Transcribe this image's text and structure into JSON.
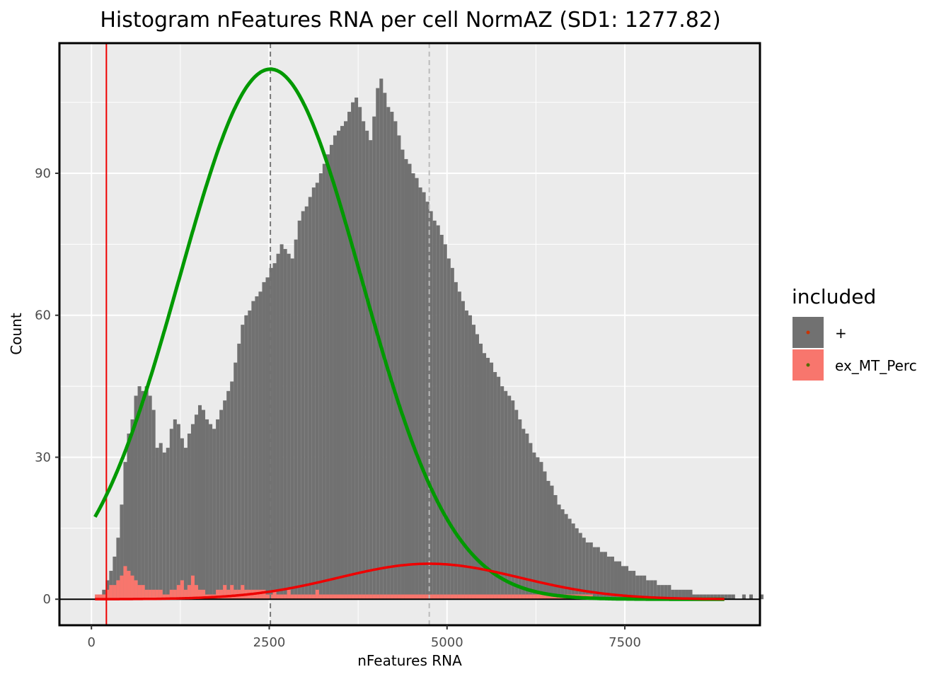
{
  "chart_data": {
    "type": "bar",
    "title": "Histogram nFeatures RNA per cell NormAZ (SD1: 1277.82)",
    "xlabel": "nFeatures RNA",
    "ylabel": "Count",
    "xlim": [
      -450,
      9400
    ],
    "ylim": [
      -5.5,
      117.5
    ],
    "xticks": [
      0,
      2500,
      5000,
      7500
    ],
    "xtick_labels": [
      "0",
      "2500",
      "5000",
      "7500"
    ],
    "yticks": [
      0,
      30,
      60,
      90
    ],
    "ytick_labels": [
      "0",
      "30",
      "60",
      "90"
    ],
    "grid": true,
    "legend_position": "right",
    "legend": {
      "title": "included",
      "entries": [
        "+",
        "ex_MT_Perc"
      ]
    },
    "bin_width": 50,
    "bin_start": 50,
    "series": [
      {
        "name": "+",
        "color": "#717171",
        "values": [
          1,
          1,
          2,
          4,
          6,
          9,
          13,
          20,
          29,
          35,
          38,
          43,
          45,
          44,
          45,
          43,
          40,
          32,
          33,
          31,
          32,
          36,
          38,
          37,
          34,
          32,
          35,
          37,
          39,
          41,
          40,
          38,
          37,
          36,
          38,
          40,
          42,
          44,
          46,
          50,
          54,
          58,
          60,
          61,
          63,
          64,
          65,
          67,
          68,
          70,
          71,
          73,
          75,
          74,
          73,
          72,
          76,
          80,
          82,
          83,
          85,
          87,
          88,
          90,
          92,
          94,
          96,
          98,
          99,
          100,
          101,
          103,
          105,
          106,
          104,
          101,
          99,
          97,
          102,
          108,
          110,
          107,
          104,
          103,
          101,
          98,
          95,
          93,
          92,
          90,
          89,
          87,
          86,
          84,
          82,
          80,
          79,
          77,
          75,
          72,
          70,
          67,
          65,
          63,
          61,
          60,
          58,
          56,
          54,
          52,
          51,
          50,
          48,
          47,
          45,
          44,
          43,
          42,
          40,
          38,
          36,
          35,
          33,
          31,
          30,
          29,
          27,
          25,
          24,
          22,
          20,
          19,
          18,
          17,
          16,
          15,
          14,
          13,
          12,
          12,
          11,
          11,
          10,
          10,
          9,
          9,
          8,
          8,
          7,
          7,
          6,
          6,
          5,
          5,
          5,
          4,
          4,
          4,
          3,
          3,
          3,
          3,
          2,
          2,
          2,
          2,
          2,
          2,
          1,
          1,
          1,
          1,
          1,
          1,
          1,
          1,
          1,
          1,
          1,
          1,
          0,
          0,
          1,
          0,
          1,
          0,
          0,
          1,
          0,
          0,
          0,
          0,
          0,
          0,
          0,
          0,
          0,
          0,
          0,
          0,
          0,
          0
        ]
      },
      {
        "name": "ex_MT_Perc",
        "color": "#f8766d",
        "values": [
          1,
          1,
          1,
          2,
          3,
          3,
          4,
          5,
          7,
          6,
          5,
          4,
          3,
          3,
          2,
          2,
          2,
          2,
          2,
          1,
          1,
          2,
          2,
          3,
          4,
          2,
          3,
          5,
          3,
          2,
          2,
          1,
          1,
          1,
          2,
          2,
          3,
          2,
          3,
          2,
          2,
          3,
          2,
          2,
          2,
          2,
          2,
          2,
          1,
          1,
          2,
          1,
          1,
          1,
          2,
          1,
          1,
          1,
          1,
          1,
          1,
          1,
          2,
          1,
          1,
          1,
          1,
          1,
          1,
          1,
          1,
          1,
          1,
          1,
          1,
          1,
          1,
          1,
          1,
          1,
          1,
          1,
          1,
          1,
          1,
          1,
          1,
          1,
          1,
          1,
          1,
          1,
          1,
          1,
          1,
          1,
          1,
          1,
          1,
          1,
          1,
          1,
          1,
          1,
          1,
          1,
          1,
          1,
          1,
          1,
          1,
          1,
          1,
          1,
          1,
          1,
          1,
          1,
          1,
          1,
          1,
          1,
          1,
          1,
          1,
          1,
          1,
          1,
          1,
          1,
          1,
          1,
          1,
          1,
          1,
          1,
          1,
          1,
          1,
          1,
          0,
          0,
          0,
          0,
          0,
          0,
          0,
          0,
          0,
          0,
          0,
          0,
          0,
          0,
          0,
          0,
          0,
          0,
          0,
          0,
          0,
          0,
          0,
          0,
          0,
          0,
          0,
          0,
          0,
          0,
          0,
          0,
          0,
          0,
          0,
          0,
          0,
          0,
          0,
          0,
          0,
          0,
          0,
          0,
          0,
          0,
          0,
          0,
          0,
          0,
          0,
          0,
          0,
          0,
          0,
          0,
          0,
          0,
          0,
          0
        ]
      }
    ],
    "density_curves": [
      {
        "color": "#009900",
        "mean": 2516,
        "sd": 1277.82,
        "peak": 112,
        "x_start": 50,
        "x_end": 8900
      },
      {
        "color": "#ee0000",
        "mean": 4750,
        "sd": 1277.82,
        "peak": 7.5,
        "x_start": 50,
        "x_end": 8900
      }
    ],
    "reference_lines": [
      {
        "x": 210,
        "color": "#ee0000",
        "style": "solid"
      },
      {
        "x": 2516,
        "color": "#777777",
        "style": "dashed"
      },
      {
        "x": 4750,
        "color": "#bbbbbb",
        "style": "dashed"
      }
    ],
    "hline": {
      "y": 0,
      "color": "#000000"
    }
  }
}
